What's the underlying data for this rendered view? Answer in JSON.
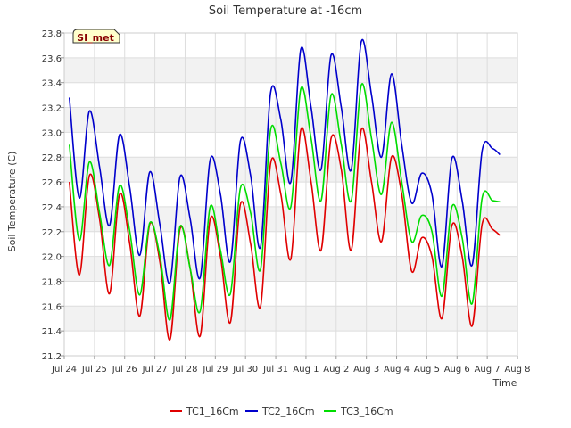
{
  "chart_data": {
    "type": "line",
    "title": "Soil Temperature at -16cm",
    "xlabel": "Time",
    "ylabel": "Soil Temperature (C)",
    "ylim": [
      21.2,
      23.8
    ],
    "yticks": [
      21.2,
      21.4,
      21.6,
      21.8,
      22.0,
      22.2,
      22.4,
      22.6,
      22.8,
      23.0,
      23.2,
      23.4,
      23.6,
      23.8
    ],
    "ytick_labels": [
      "21.2",
      "21.4",
      "21.6",
      "21.8",
      "22.0",
      "22.2",
      "22.4",
      "22.6",
      "22.8",
      "23.0",
      "23.2",
      "23.4",
      "23.6",
      "23.8"
    ],
    "xlim": [
      0,
      15
    ],
    "xticks": [
      0,
      1,
      2,
      3,
      4,
      5,
      6,
      7,
      8,
      9,
      10,
      11,
      12,
      13,
      14,
      15
    ],
    "xtick_labels": [
      "Jul 24",
      "Jul 25",
      "Jul 26",
      "Jul 27",
      "Jul 28",
      "Jul 29",
      "Jul 30",
      "Jul 31",
      "Aug 1",
      "Aug 2",
      "Aug 3",
      "Aug 4",
      "Aug 5",
      "Aug 6",
      "Aug 7",
      "Aug 8"
    ],
    "grid": true,
    "legend_position": "bottom",
    "station_label": "SI_met",
    "series": [
      {
        "name": "TC1_16Cm",
        "color": "#e00000",
        "x": [
          0.17,
          0.5,
          0.83,
          1.17,
          1.5,
          1.83,
          2.17,
          2.5,
          2.83,
          3.17,
          3.5,
          3.83,
          4.17,
          4.5,
          4.83,
          5.17,
          5.5,
          5.83,
          6.17,
          6.5,
          6.83,
          7.17,
          7.5,
          7.83,
          8.17,
          8.5,
          8.83,
          9.17,
          9.5,
          9.83,
          10.17,
          10.5,
          10.83,
          11.17,
          11.5,
          11.83,
          12.17,
          12.5,
          12.83,
          13.17,
          13.5,
          13.83,
          14.17,
          14.42
        ],
        "values": [
          22.6,
          21.85,
          22.65,
          22.3,
          21.7,
          22.5,
          22.1,
          21.52,
          22.26,
          21.95,
          21.33,
          22.22,
          21.9,
          21.36,
          22.3,
          22.0,
          21.47,
          22.42,
          22.1,
          21.6,
          22.75,
          22.5,
          21.98,
          23.02,
          22.6,
          22.05,
          22.95,
          22.7,
          22.05,
          23.02,
          22.6,
          22.12,
          22.8,
          22.5,
          21.88,
          22.15,
          22.0,
          21.5,
          22.25,
          22.0,
          21.44,
          22.26,
          22.22,
          22.17
        ]
      },
      {
        "name": "TC2_16Cm",
        "color": "#0000cc",
        "x": [
          0.17,
          0.5,
          0.83,
          1.17,
          1.5,
          1.83,
          2.17,
          2.5,
          2.83,
          3.17,
          3.5,
          3.83,
          4.17,
          4.5,
          4.83,
          5.17,
          5.5,
          5.83,
          6.17,
          6.5,
          6.83,
          7.17,
          7.5,
          7.83,
          8.17,
          8.5,
          8.83,
          9.17,
          9.5,
          9.83,
          10.17,
          10.5,
          10.83,
          11.17,
          11.5,
          11.83,
          12.17,
          12.5,
          12.83,
          13.17,
          13.5,
          13.83,
          14.17,
          14.42
        ],
        "values": [
          23.28,
          22.47,
          23.17,
          22.72,
          22.25,
          22.98,
          22.55,
          22.01,
          22.68,
          22.25,
          21.79,
          22.64,
          22.3,
          21.83,
          22.78,
          22.5,
          21.96,
          22.93,
          22.65,
          22.08,
          23.32,
          23.1,
          22.6,
          23.67,
          23.2,
          22.7,
          23.62,
          23.2,
          22.7,
          23.73,
          23.3,
          22.8,
          23.47,
          22.9,
          22.43,
          22.67,
          22.5,
          21.92,
          22.79,
          22.45,
          21.93,
          22.85,
          22.87,
          22.82
        ]
      },
      {
        "name": "TC3_16Cm",
        "color": "#00dd00",
        "x": [
          0.17,
          0.5,
          0.83,
          1.17,
          1.5,
          1.83,
          2.17,
          2.5,
          2.83,
          3.17,
          3.5,
          3.83,
          4.17,
          4.5,
          4.83,
          5.17,
          5.5,
          5.83,
          6.17,
          6.5,
          6.83,
          7.17,
          7.5,
          7.83,
          8.17,
          8.5,
          8.83,
          9.17,
          9.5,
          9.83,
          10.17,
          10.5,
          10.83,
          11.17,
          11.5,
          11.83,
          12.17,
          12.5,
          12.83,
          13.17,
          13.5,
          13.83,
          14.17,
          14.42
        ],
        "values": [
          22.9,
          22.13,
          22.76,
          22.35,
          21.93,
          22.57,
          22.2,
          21.69,
          22.27,
          22.0,
          21.49,
          22.24,
          21.9,
          21.56,
          22.4,
          22.05,
          21.7,
          22.55,
          22.35,
          21.9,
          23.02,
          22.75,
          22.4,
          23.35,
          22.95,
          22.45,
          23.3,
          22.9,
          22.45,
          23.38,
          22.95,
          22.5,
          23.08,
          22.6,
          22.12,
          22.33,
          22.2,
          21.68,
          22.4,
          22.15,
          21.62,
          22.47,
          22.45,
          22.44
        ]
      }
    ]
  }
}
